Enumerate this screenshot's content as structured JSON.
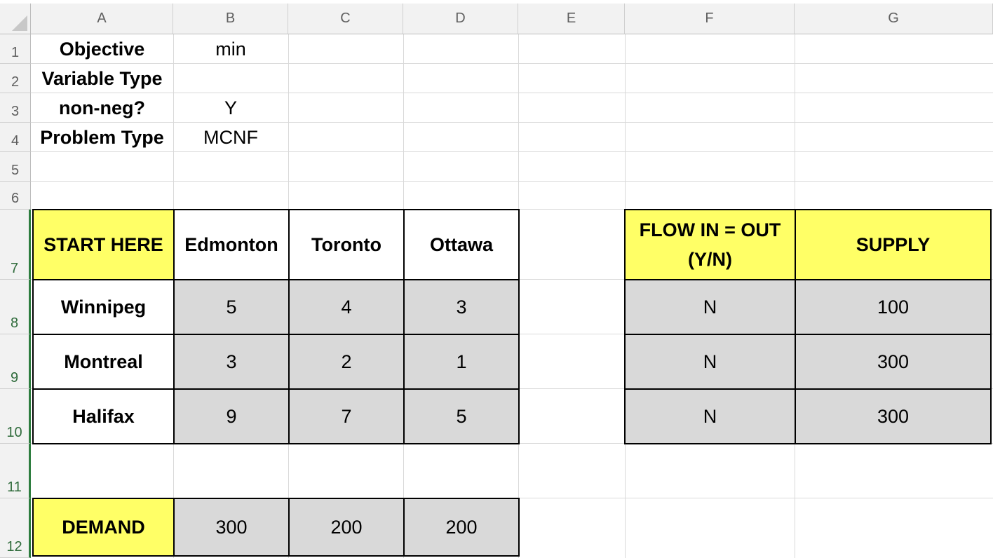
{
  "columns": [
    "A",
    "B",
    "C",
    "D",
    "E",
    "F",
    "G"
  ],
  "rows": [
    "1",
    "2",
    "3",
    "4",
    "5",
    "6",
    "7",
    "8",
    "9",
    "10",
    "11",
    "12"
  ],
  "params": {
    "objective_label": "Objective",
    "objective_value": "min",
    "variable_type_label": "Variable Type",
    "variable_type_value": "",
    "nonneg_label": "non-neg?",
    "nonneg_value": "Y",
    "problem_type_label": "Problem Type",
    "problem_type_value": "MCNF"
  },
  "cost_table": {
    "corner": "START HERE",
    "destinations": [
      "Edmonton",
      "Toronto",
      "Ottawa"
    ],
    "origins": [
      {
        "name": "Winnipeg",
        "costs": [
          "5",
          "4",
          "3"
        ]
      },
      {
        "name": "Montreal",
        "costs": [
          "3",
          "2",
          "1"
        ]
      },
      {
        "name": "Halifax",
        "costs": [
          "9",
          "7",
          "5"
        ]
      }
    ]
  },
  "supply_table": {
    "flow_header": "FLOW IN = OUT (Y/N)",
    "supply_header": "SUPPLY",
    "rows": [
      {
        "flow": "N",
        "supply": "100"
      },
      {
        "flow": "N",
        "supply": "300"
      },
      {
        "flow": "N",
        "supply": "300"
      }
    ]
  },
  "demand": {
    "label": "DEMAND",
    "values": [
      "300",
      "200",
      "200"
    ]
  },
  "colors": {
    "header_fill": "#ffff66",
    "data_fill": "#d9d9d9",
    "selected_row_header": "#2e7d3f"
  }
}
